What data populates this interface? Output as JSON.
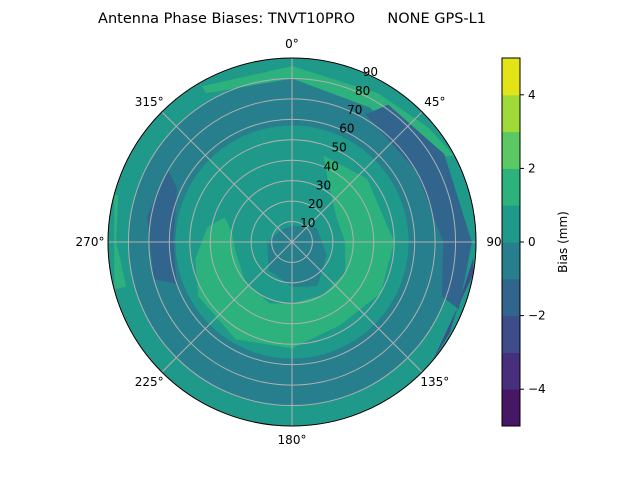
{
  "chart_data": {
    "type": "polar-contour",
    "title": "Antenna Phase Biases: TNVT10PRO       NONE GPS-L1",
    "azimuth_ticks": [
      "0°",
      "45°",
      "90",
      "135°",
      "180°",
      "225°",
      "270°",
      "315°"
    ],
    "azimuth_tick_values": [
      0,
      45,
      90,
      135,
      180,
      225,
      270,
      315
    ],
    "zenith_ticks": [
      "10",
      "20",
      "30",
      "40",
      "50",
      "60",
      "70",
      "80",
      "90"
    ],
    "zenith_tick_values": [
      10,
      20,
      30,
      40,
      50,
      60,
      70,
      80,
      90
    ],
    "zenith_range": [
      0,
      90
    ],
    "grid": true,
    "colorbar": {
      "label": "Bias (mm)",
      "levels": [
        -5,
        -4,
        -3,
        -2,
        -1,
        0,
        1,
        2,
        3,
        4,
        5
      ],
      "tick_labels": [
        "−4",
        "−2",
        "0",
        "2",
        "4"
      ],
      "tick_values": [
        -4,
        -2,
        0,
        2,
        4
      ],
      "colors": [
        "#461765",
        "#472f7d",
        "#3e4c8a",
        "#32658e",
        "#277f8e",
        "#1f9a8a",
        "#2db27d",
        "#5cc863",
        "#a0da39",
        "#e3e418"
      ],
      "colormap": "viridis"
    },
    "regions": [
      {
        "band": [
          0,
          1
        ],
        "sector": [
          0,
          360,
          0,
          90
        ]
      },
      {
        "band": [
          -1,
          0
        ],
        "sector": [
          0,
          360,
          57,
          80
        ]
      },
      {
        "band": [
          1,
          2
        ],
        "polygon": [
          [
            330,
            88
          ],
          [
            0,
            86
          ],
          [
            30,
            84
          ],
          [
            50,
            87
          ],
          [
            62,
            90
          ],
          [
            58,
            78
          ],
          [
            30,
            76
          ],
          [
            0,
            80
          ],
          [
            330,
            84
          ]
        ]
      },
      {
        "band": [
          -2,
          -1
        ],
        "polygon": [
          [
            30,
            72
          ],
          [
            60,
            70
          ],
          [
            90,
            74
          ],
          [
            110,
            78
          ],
          [
            112,
            88
          ],
          [
            90,
            88
          ],
          [
            60,
            86
          ],
          [
            35,
            82
          ]
        ]
      },
      {
        "band": [
          -2,
          -1
        ],
        "polygon": [
          [
            250,
            60
          ],
          [
            270,
            58
          ],
          [
            295,
            62
          ],
          [
            300,
            70
          ],
          [
            280,
            72
          ],
          [
            255,
            70
          ]
        ]
      },
      {
        "band": [
          -3,
          -2
        ],
        "polygon": [
          [
            95,
            89
          ],
          [
            120,
            89
          ],
          [
            130,
            90
          ],
          [
            100,
            90
          ]
        ]
      },
      {
        "band": [
          1,
          2
        ],
        "polygon": [
          [
            255,
            84
          ],
          [
            270,
            86
          ],
          [
            285,
            88
          ],
          [
            285,
            90
          ],
          [
            255,
            90
          ]
        ]
      },
      {
        "band": [
          1,
          2
        ],
        "polygon": [
          [
            20,
            45
          ],
          [
            50,
            48
          ],
          [
            90,
            50
          ],
          [
            120,
            50
          ],
          [
            150,
            47
          ],
          [
            180,
            52
          ],
          [
            210,
            55
          ],
          [
            240,
            53
          ],
          [
            260,
            48
          ],
          [
            280,
            42
          ],
          [
            290,
            35
          ],
          [
            280,
            30
          ],
          [
            260,
            28
          ],
          [
            230,
            30
          ],
          [
            200,
            32
          ],
          [
            180,
            30
          ],
          [
            150,
            30
          ],
          [
            120,
            30
          ],
          [
            90,
            26
          ],
          [
            60,
            25
          ],
          [
            30,
            35
          ]
        ]
      },
      {
        "band": [
          -1,
          0
        ],
        "polygon": [
          [
            0,
            8
          ],
          [
            60,
            14
          ],
          [
            110,
            18
          ],
          [
            150,
            25
          ],
          [
            180,
            22
          ],
          [
            220,
            18
          ],
          [
            270,
            12
          ],
          [
            320,
            8
          ]
        ]
      }
    ]
  }
}
